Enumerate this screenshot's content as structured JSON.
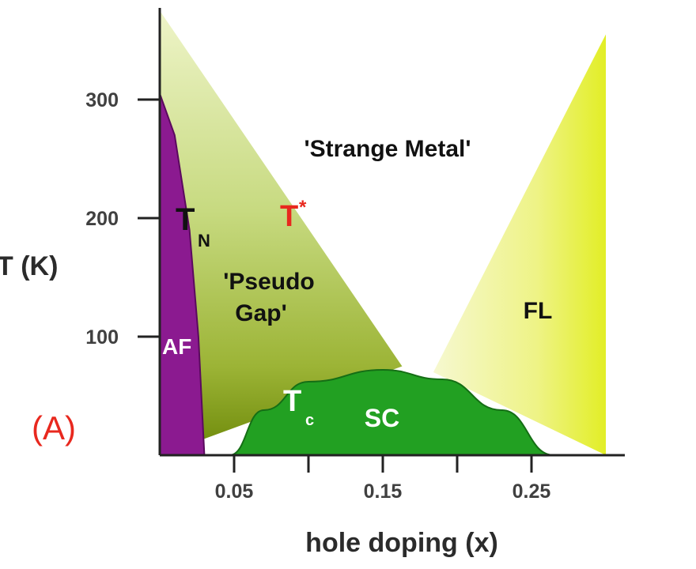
{
  "chart_data": {
    "type": "area",
    "title": "",
    "xlabel": "hole doping (x)",
    "ylabel": "T (K)",
    "xlim": [
      0,
      0.31
    ],
    "ylim": [
      0,
      370
    ],
    "x_ticks": [
      {
        "value": 0.05,
        "label": "0.05"
      },
      {
        "value": 0.1,
        "label": ""
      },
      {
        "value": 0.15,
        "label": "0.15"
      },
      {
        "value": 0.2,
        "label": ""
      },
      {
        "value": 0.25,
        "label": "0.25"
      }
    ],
    "y_ticks": [
      {
        "value": 100,
        "label": "100"
      },
      {
        "value": 200,
        "label": "200"
      },
      {
        "value": 300,
        "label": "300"
      }
    ],
    "panel_label": "(A)",
    "regions": [
      {
        "name": "pseudogap",
        "color": "#c9d98a",
        "boundary": [
          [
            0.0,
            375
          ],
          [
            0.163,
            75
          ],
          [
            0.0,
            0
          ]
        ]
      },
      {
        "name": "fermi-liquid",
        "color": "#eef3a0",
        "boundary": [
          [
            0.184,
            70
          ],
          [
            0.3,
            355
          ],
          [
            0.3,
            0
          ]
        ]
      },
      {
        "name": "antiferromagnet",
        "color": "#8b1a90",
        "boundary_TN": [
          [
            0.0,
            305
          ],
          [
            0.01,
            270
          ],
          [
            0.02,
            190
          ],
          [
            0.026,
            100
          ],
          [
            0.03,
            0
          ]
        ]
      },
      {
        "name": "superconductor",
        "color": "#22a022",
        "dome_Tc": [
          [
            0.047,
            0
          ],
          [
            0.07,
            38
          ],
          [
            0.1,
            62
          ],
          [
            0.15,
            72
          ],
          [
            0.19,
            64
          ],
          [
            0.23,
            38
          ],
          [
            0.265,
            0
          ]
        ]
      }
    ],
    "colors": {
      "af": "#8b1a90",
      "sc": "#22a022",
      "pg_light": "#e4edb4",
      "pg_dark": "#6f8a10",
      "fl_light": "#f2f5c4",
      "fl_dark": "#e0ee30",
      "t_star": "#e8281e",
      "panel": "#e8281e"
    },
    "labels": {
      "strange_metal": "'Strange Metal'",
      "pseudo_gap_1": "'Pseudo",
      "pseudo_gap_2": "Gap'",
      "fl": "FL",
      "af": "AF",
      "sc": "SC",
      "tn_main": "T",
      "tn_sub": "N",
      "tstar_main": "T",
      "tstar_sup": "*",
      "tc_main": "T",
      "tc_sub": "c"
    }
  }
}
